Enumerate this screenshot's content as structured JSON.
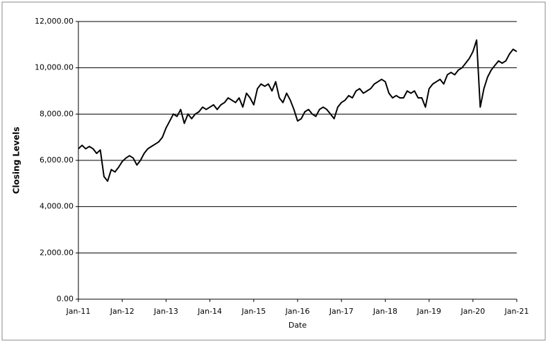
{
  "chart_data": {
    "type": "line",
    "y_label": "Closing Levels",
    "x_label": "Date",
    "x": [
      "2011-01",
      "2011-02",
      "2011-03",
      "2011-04",
      "2011-05",
      "2011-06",
      "2011-07",
      "2011-08",
      "2011-09",
      "2011-10",
      "2011-11",
      "2011-12",
      "2012-01",
      "2012-02",
      "2012-03",
      "2012-04",
      "2012-05",
      "2012-06",
      "2012-07",
      "2012-08",
      "2012-09",
      "2012-10",
      "2012-11",
      "2012-12",
      "2013-01",
      "2013-02",
      "2013-03",
      "2013-04",
      "2013-05",
      "2013-06",
      "2013-07",
      "2013-08",
      "2013-09",
      "2013-10",
      "2013-11",
      "2013-12",
      "2014-01",
      "2014-02",
      "2014-03",
      "2014-04",
      "2014-05",
      "2014-06",
      "2014-07",
      "2014-08",
      "2014-09",
      "2014-10",
      "2014-11",
      "2014-12",
      "2015-01",
      "2015-02",
      "2015-03",
      "2015-04",
      "2015-05",
      "2015-06",
      "2015-07",
      "2015-08",
      "2015-09",
      "2015-10",
      "2015-11",
      "2015-12",
      "2016-01",
      "2016-02",
      "2016-03",
      "2016-04",
      "2016-05",
      "2016-06",
      "2016-07",
      "2016-08",
      "2016-09",
      "2016-10",
      "2016-11",
      "2016-12",
      "2017-01",
      "2017-02",
      "2017-03",
      "2017-04",
      "2017-05",
      "2017-06",
      "2017-07",
      "2017-08",
      "2017-09",
      "2017-10",
      "2017-11",
      "2017-12",
      "2018-01",
      "2018-02",
      "2018-03",
      "2018-04",
      "2018-05",
      "2018-06",
      "2018-07",
      "2018-08",
      "2018-09",
      "2018-10",
      "2018-11",
      "2018-12",
      "2019-01",
      "2019-02",
      "2019-03",
      "2019-04",
      "2019-05",
      "2019-06",
      "2019-07",
      "2019-08",
      "2019-09",
      "2019-10",
      "2019-11",
      "2019-12",
      "2020-01",
      "2020-02",
      "2020-03",
      "2020-04",
      "2020-05",
      "2020-06",
      "2020-07",
      "2020-08",
      "2020-09",
      "2020-10",
      "2020-11",
      "2020-12",
      "2021-01"
    ],
    "values": [
      6500,
      6650,
      6500,
      6600,
      6500,
      6300,
      6450,
      5300,
      5100,
      5600,
      5500,
      5700,
      5950,
      6100,
      6200,
      6100,
      5800,
      6000,
      6300,
      6500,
      6600,
      6700,
      6800,
      7000,
      7400,
      7700,
      8000,
      7900,
      8200,
      7600,
      8000,
      7800,
      8000,
      8100,
      8300,
      8200,
      8300,
      8400,
      8200,
      8400,
      8500,
      8700,
      8600,
      8500,
      8700,
      8300,
      8900,
      8700,
      8400,
      9100,
      9300,
      9200,
      9300,
      9000,
      9400,
      8700,
      8500,
      8900,
      8600,
      8200,
      7700,
      7800,
      8100,
      8200,
      8000,
      7900,
      8200,
      8300,
      8200,
      8000,
      7800,
      8300,
      8500,
      8600,
      8800,
      8700,
      9000,
      9100,
      8900,
      9000,
      9100,
      9300,
      9400,
      9500,
      9400,
      8900,
      8700,
      8800,
      8700,
      8700,
      9000,
      8900,
      9000,
      8700,
      8700,
      8300,
      9100,
      9300,
      9400,
      9500,
      9300,
      9700,
      9800,
      9700,
      9900,
      10000,
      10200,
      10400,
      10700,
      11200,
      8300,
      9100,
      9600,
      9900,
      10100,
      10300,
      10200,
      10300,
      10600,
      10800,
      10700
    ],
    "color": "#000000",
    "xlim": [
      "2011-01",
      "2021-01"
    ],
    "xticks": [
      {
        "value": "2011-01",
        "label": "Jan-11"
      },
      {
        "value": "2012-01",
        "label": "Jan-12"
      },
      {
        "value": "2013-01",
        "label": "Jan-13"
      },
      {
        "value": "2014-01",
        "label": "Jan-14"
      },
      {
        "value": "2015-01",
        "label": "Jan-15"
      },
      {
        "value": "2016-01",
        "label": "Jan-16"
      },
      {
        "value": "2017-01",
        "label": "Jan-17"
      },
      {
        "value": "2018-01",
        "label": "Jan-18"
      },
      {
        "value": "2019-01",
        "label": "Jan-19"
      },
      {
        "value": "2020-01",
        "label": "Jan-20"
      },
      {
        "value": "2021-01",
        "label": "Jan-21"
      }
    ],
    "ylim": [
      0,
      12000
    ],
    "yticks": [
      {
        "value": 0,
        "label": "0.00"
      },
      {
        "value": 2000,
        "label": "2,000.00"
      },
      {
        "value": 4000,
        "label": "4,000.00"
      },
      {
        "value": 6000,
        "label": "6,000.00"
      },
      {
        "value": 8000,
        "label": "8,000.00"
      },
      {
        "value": 10000,
        "label": "10,000.00"
      },
      {
        "value": 12000,
        "label": "12,000.00"
      }
    ],
    "grid": true
  }
}
